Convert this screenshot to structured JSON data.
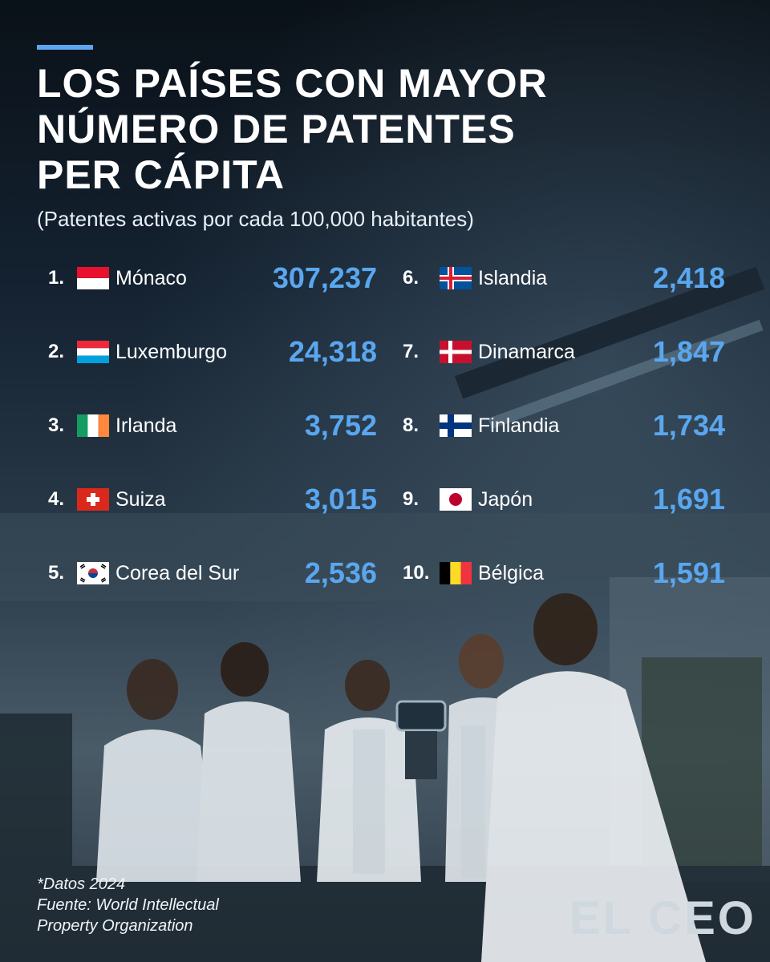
{
  "title_lines": [
    "LOS PAÍSES CON MAYOR",
    "NÚMERO DE PATENTES",
    "PER CÁPITA"
  ],
  "subtitle": "(Patentes activas por cada 100,000 habitantes)",
  "chart_data": {
    "type": "table",
    "title": "LOS PAÍSES CON MAYOR NÚMERO DE PATENTES PER CÁPITA",
    "subtitle": "(Patentes activas por cada 100,000 habitantes)",
    "rows": [
      {
        "rank": "1.",
        "country": "Mónaco",
        "value": "307,237",
        "flag": "monaco-flag"
      },
      {
        "rank": "2.",
        "country": "Luxemburgo",
        "value": "24,318",
        "flag": "luxembourg-flag"
      },
      {
        "rank": "3.",
        "country": "Irlanda",
        "value": "3,752",
        "flag": "ireland-flag"
      },
      {
        "rank": "4.",
        "country": "Suiza",
        "value": "3,015",
        "flag": "switzerland-flag"
      },
      {
        "rank": "5.",
        "country": "Corea del Sur",
        "value": "2,536",
        "flag": "south-korea-flag"
      },
      {
        "rank": "6.",
        "country": "Islandia",
        "value": "2,418",
        "flag": "iceland-flag"
      },
      {
        "rank": "7.",
        "country": "Dinamarca",
        "value": "1,847",
        "flag": "denmark-flag"
      },
      {
        "rank": "8.",
        "country": "Finlandia",
        "value": "1,734",
        "flag": "finland-flag"
      },
      {
        "rank": "9.",
        "country": "Japón",
        "value": "1,691",
        "flag": "japan-flag"
      },
      {
        "rank": "10.",
        "country": "Bélgica",
        "value": "1,591",
        "flag": "belgium-flag"
      }
    ]
  },
  "footnote": {
    "line1": "*Datos 2024",
    "line2": "Fuente: World Intellectual",
    "line3": "Property Organization"
  },
  "logo": "EL CEO",
  "colors": {
    "accent": "#5aa7f0",
    "background": "#0f1a24",
    "text": "#ffffff"
  }
}
